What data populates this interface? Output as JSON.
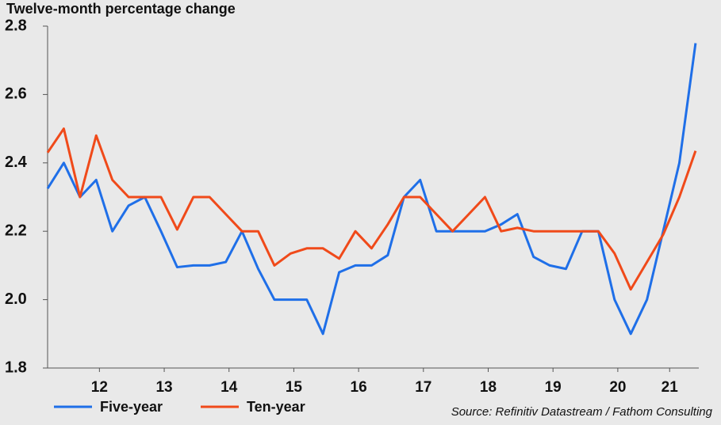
{
  "chart_data": {
    "type": "line",
    "title": "Twelve-month percentage change",
    "source": "Source: Refinitiv Datastream / Fathom Consulting",
    "x": [
      2011.7,
      2011.95,
      2012.2,
      2012.45,
      2012.7,
      2012.95,
      2013.2,
      2013.45,
      2013.7,
      2013.95,
      2014.2,
      2014.45,
      2014.7,
      2014.95,
      2015.2,
      2015.45,
      2015.7,
      2015.95,
      2016.2,
      2016.45,
      2016.7,
      2016.95,
      2017.2,
      2017.45,
      2017.7,
      2017.95,
      2018.2,
      2018.45,
      2018.7,
      2018.95,
      2019.2,
      2019.45,
      2019.7,
      2019.95,
      2020.2,
      2020.45,
      2020.7,
      2020.95,
      2021.2,
      2021.45,
      2021.7
    ],
    "series": [
      {
        "name": "Five-year",
        "color": "#1f6fe8",
        "values": [
          2.325,
          2.4,
          2.3,
          2.35,
          2.2,
          2.275,
          2.3,
          2.2,
          2.095,
          2.1,
          2.1,
          2.11,
          2.2,
          2.09,
          2.0,
          2.0,
          2.0,
          1.9,
          2.08,
          2.1,
          2.1,
          2.13,
          2.3,
          2.35,
          2.2,
          2.2,
          2.2,
          2.2,
          2.22,
          2.25,
          2.125,
          2.1,
          2.09,
          2.2,
          2.2,
          2.0,
          1.9,
          2.0,
          2.2,
          2.4,
          2.75
        ]
      },
      {
        "name": "Ten-year",
        "color": "#f04a1a",
        "values": [
          2.43,
          2.5,
          2.3,
          2.48,
          2.35,
          2.3,
          2.3,
          2.3,
          2.205,
          2.3,
          2.3,
          2.25,
          2.2,
          2.2,
          2.1,
          2.135,
          2.15,
          2.15,
          2.12,
          2.2,
          2.15,
          2.22,
          2.3,
          2.3,
          2.25,
          2.2,
          2.25,
          2.3,
          2.2,
          2.21,
          2.2,
          2.2,
          2.2,
          2.2,
          2.2,
          2.135,
          2.03,
          2.11,
          2.19,
          2.3,
          2.435
        ]
      }
    ],
    "xlim": [
      2011.7,
      2021.75
    ],
    "xticks": [
      {
        "value": 2012.5,
        "label": "12"
      },
      {
        "value": 2013.5,
        "label": "13"
      },
      {
        "value": 2014.5,
        "label": "14"
      },
      {
        "value": 2015.5,
        "label": "15"
      },
      {
        "value": 2016.5,
        "label": "16"
      },
      {
        "value": 2017.5,
        "label": "17"
      },
      {
        "value": 2018.5,
        "label": "18"
      },
      {
        "value": 2019.5,
        "label": "19"
      },
      {
        "value": 2020.5,
        "label": "20"
      },
      {
        "value": 2021.3,
        "label": "21"
      }
    ],
    "ylim": [
      1.8,
      2.8
    ],
    "yticks": [
      1.8,
      {
        "value": 2,
        "label": "2.0"
      },
      2.2,
      2.4,
      2.6,
      2.8
    ],
    "legend": "bottom-left"
  }
}
